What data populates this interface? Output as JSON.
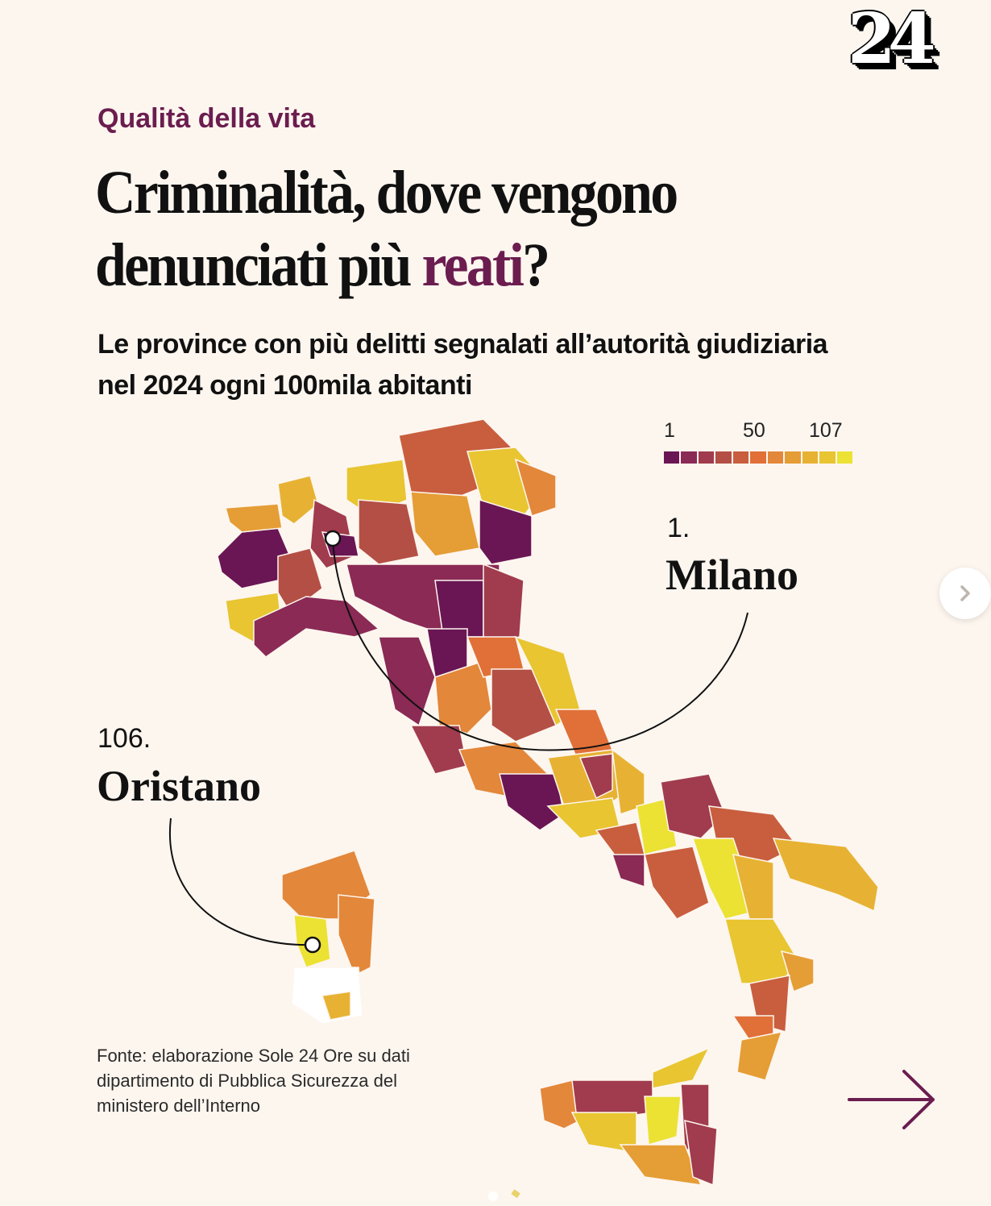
{
  "brand": {
    "logo_text": "24"
  },
  "header": {
    "kicker": "Qualità della vita",
    "headline_part1": "Criminalità, dove vengono denunciati più ",
    "headline_accent": "reati",
    "headline_end": "?",
    "subtitle": "Le province con più delitti segnalati all’autorità giudiziaria nel 2024 ogni 100mila abitanti"
  },
  "legend": {
    "label_min": "1",
    "label_mid": "50",
    "label_max": "107",
    "colors": [
      "#6a1654",
      "#8a2a55",
      "#a03c4d",
      "#b44f45",
      "#c85e3e",
      "#e07038",
      "#e3873a",
      "#e59d36",
      "#e7b233",
      "#e8c531",
      "#ebe233"
    ]
  },
  "annotations": {
    "top": {
      "rank": "1.",
      "name": "Milano"
    },
    "bottom": {
      "rank": "106.",
      "name": "Oristano"
    }
  },
  "footer": {
    "source": "Fonte: elaborazione Sole 24 Ore su dati dipartimento di Pubblica Sicurezza del ministero dell’Interno"
  },
  "navigation": {
    "next_icon": "chevron-right-icon",
    "arrow_icon": "arrow-right-icon"
  },
  "chart_data": {
    "type": "choropleth",
    "title": "Criminalità, dove vengono denunciati più reati?",
    "subtitle": "Le province con più delitti segnalati all’autorità giudiziaria nel 2024 ogni 100mila abitanti",
    "metric": "rank (1 = most crimes reported per 100k inhabitants)",
    "scale": {
      "min": 1,
      "mid": 50,
      "max": 107,
      "steps": 11,
      "low_color": "#6a1654",
      "high_color": "#ebe233"
    },
    "highlighted": [
      {
        "province": "Milano",
        "rank": 1
      },
      {
        "province": "Oristano",
        "rank": 106
      }
    ],
    "source": "Fonte: elaborazione Sole 24 Ore su dati dipartimento di Pubblica Sicurezza del ministero dell’Interno"
  }
}
